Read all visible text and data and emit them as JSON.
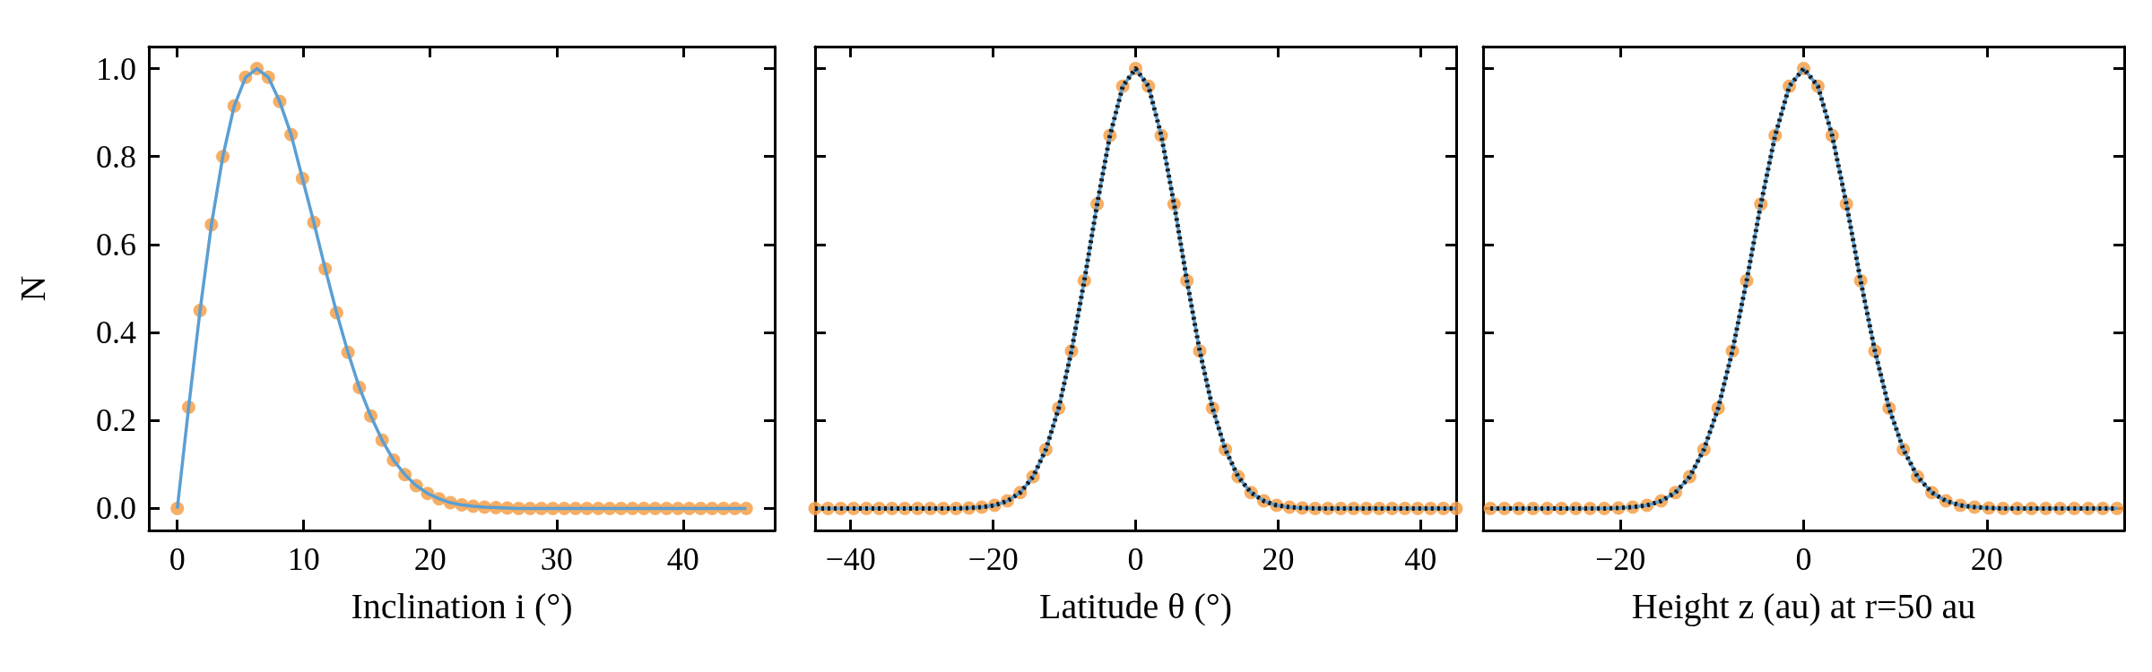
{
  "chart_data": [
    {
      "type": "line",
      "xlabel": "Inclination i (°)",
      "ylabel": "N",
      "xlim": [
        -2.25,
        47.25
      ],
      "xticks": [
        0,
        10,
        20,
        30,
        40
      ],
      "ylim": [
        -0.05,
        1.05
      ],
      "yticks": [
        {
          "value": 0,
          "label": "0.0"
        },
        {
          "value": 0.2,
          "label": "0.2"
        },
        {
          "value": 0.4,
          "label": "0.4"
        },
        {
          "value": 0.6,
          "label": "0.6"
        },
        {
          "value": 0.8,
          "label": "0.8"
        },
        {
          "value": 1,
          "label": "1.0"
        }
      ],
      "grid": false,
      "x": [
        0,
        0.9,
        1.8,
        2.7,
        3.6,
        4.5,
        5.4,
        6.3,
        7.2,
        8.1,
        9,
        9.9,
        10.8,
        11.7,
        12.6,
        13.5,
        14.4,
        15.3,
        16.2,
        17.1,
        18,
        18.9,
        19.8,
        20.7,
        21.6,
        22.5,
        23.4,
        24.3,
        25.2,
        26.1,
        27,
        27.9,
        28.8,
        29.7,
        30.6,
        31.5,
        32.4,
        33.3,
        34.2,
        35.1,
        36,
        36.9,
        37.8,
        38.7,
        39.6,
        40.5,
        41.4,
        42.3,
        43.2,
        44.1,
        45
      ],
      "series": [
        {
          "color": "#5a9fd4",
          "line_style": "solid",
          "marker": "none",
          "values": [
            0,
            0.23,
            0.45,
            0.645,
            0.8,
            0.915,
            0.98,
            1.0,
            0.98,
            0.925,
            0.85,
            0.75,
            0.65,
            0.545,
            0.445,
            0.355,
            0.275,
            0.21,
            0.155,
            0.11,
            0.077,
            0.052,
            0.034,
            0.022,
            0.013,
            0.008,
            0.005,
            0.003,
            0.002,
            0.001,
            0,
            0,
            0,
            0,
            0,
            0,
            0,
            0,
            0,
            0,
            0,
            0,
            0,
            0,
            0,
            0,
            0,
            0,
            0,
            0,
            0
          ]
        },
        {
          "type": "scatter",
          "color": "#f5a04a",
          "marker": "circle",
          "values": [
            0,
            0.23,
            0.45,
            0.645,
            0.8,
            0.915,
            0.98,
            1.0,
            0.98,
            0.925,
            0.85,
            0.75,
            0.65,
            0.545,
            0.445,
            0.355,
            0.275,
            0.21,
            0.155,
            0.11,
            0.077,
            0.052,
            0.034,
            0.022,
            0.013,
            0.008,
            0.005,
            0.003,
            0.002,
            0.001,
            0,
            0,
            0,
            0,
            0,
            0,
            0,
            0,
            0,
            0,
            0,
            0,
            0,
            0,
            0,
            0,
            0,
            0,
            0,
            0,
            0
          ]
        }
      ]
    },
    {
      "type": "line",
      "xlabel": "Latitude θ (°)",
      "xlim": [
        -45,
        45
      ],
      "xticks": [
        -40,
        -20,
        0,
        20,
        40
      ],
      "ylim": [
        -0.05,
        1.05
      ],
      "yticks": [
        0,
        0.2,
        0.4,
        0.6,
        0.8,
        1
      ],
      "tick_labels": "x",
      "grid": false,
      "x": [
        -45,
        -43.2,
        -41.4,
        -39.6,
        -37.8,
        -36,
        -34.2,
        -32.4,
        -30.6,
        -28.8,
        -27,
        -25.2,
        -23.4,
        -21.6,
        -19.8,
        -18,
        -16.2,
        -14.4,
        -12.6,
        -10.8,
        -9,
        -7.2,
        -5.4,
        -3.6,
        -1.8,
        0,
        1.8,
        3.6,
        5.4,
        7.2,
        9,
        10.8,
        12.6,
        14.4,
        16.2,
        18,
        19.8,
        21.6,
        23.4,
        25.2,
        27,
        28.8,
        30.6,
        32.4,
        34.2,
        36,
        37.8,
        39.6,
        41.4,
        43.2,
        45
      ],
      "series": [
        {
          "color": "#5a9fd4",
          "line_style": "solid",
          "marker": "none",
          "values": [
            0,
            0,
            0,
            0,
            0,
            0,
            0,
            0,
            0,
            0,
            0,
            0,
            0.001,
            0.003,
            0.007,
            0.017,
            0.036,
            0.072,
            0.134,
            0.228,
            0.358,
            0.518,
            0.692,
            0.848,
            0.96,
            1.0,
            0.96,
            0.848,
            0.692,
            0.518,
            0.358,
            0.228,
            0.134,
            0.072,
            0.036,
            0.017,
            0.007,
            0.003,
            0.001,
            0,
            0,
            0,
            0,
            0,
            0,
            0,
            0,
            0,
            0,
            0,
            0
          ]
        },
        {
          "type": "scatter",
          "color": "#f5a04a",
          "marker": "circle",
          "values": [
            0,
            0,
            0,
            0,
            0,
            0,
            0,
            0,
            0,
            0,
            0,
            0,
            0.001,
            0.003,
            0.007,
            0.017,
            0.036,
            0.072,
            0.134,
            0.228,
            0.358,
            0.518,
            0.692,
            0.848,
            0.96,
            1.0,
            0.96,
            0.848,
            0.692,
            0.518,
            0.358,
            0.228,
            0.134,
            0.072,
            0.036,
            0.017,
            0.007,
            0.003,
            0.001,
            0,
            0,
            0,
            0,
            0,
            0,
            0,
            0,
            0,
            0,
            0,
            0
          ]
        },
        {
          "color": "#1a1a1a",
          "line_style": "dotted",
          "marker": "none",
          "values": [
            0,
            0,
            0,
            0,
            0,
            0,
            0,
            0,
            0,
            0,
            0,
            0,
            0.001,
            0.003,
            0.007,
            0.017,
            0.036,
            0.072,
            0.134,
            0.228,
            0.358,
            0.518,
            0.692,
            0.848,
            0.96,
            1.0,
            0.96,
            0.848,
            0.692,
            0.518,
            0.358,
            0.228,
            0.134,
            0.072,
            0.036,
            0.017,
            0.007,
            0.003,
            0.001,
            0,
            0,
            0,
            0,
            0,
            0,
            0,
            0,
            0,
            0,
            0,
            0
          ]
        }
      ]
    },
    {
      "type": "line",
      "xlabel": "Height z (au) at r=50 au",
      "xlim": [
        -35,
        35
      ],
      "xticks": [
        -20,
        0,
        20
      ],
      "ylim": [
        -0.05,
        1.05
      ],
      "yticks": [
        0,
        0.2,
        0.4,
        0.6,
        0.8,
        1
      ],
      "tick_labels": "x",
      "grid": false,
      "x": [
        -34.21,
        -32.66,
        -31.1,
        -29.55,
        -27.99,
        -26.44,
        -24.88,
        -23.33,
        -21.77,
        -20.22,
        -18.66,
        -17.11,
        -15.55,
        -14,
        -12.44,
        -10.89,
        -9.33,
        -7.78,
        -6.22,
        -4.67,
        -3.11,
        -1.56,
        0,
        1.56,
        3.11,
        4.67,
        6.22,
        7.78,
        9.33,
        10.89,
        12.44,
        14,
        15.55,
        17.11,
        18.66,
        20.22,
        21.77,
        23.33,
        24.88,
        26.44,
        27.99,
        29.55,
        31.1,
        32.66,
        34.21
      ],
      "series": [
        {
          "color": "#5a9fd4",
          "line_style": "solid",
          "marker": "none",
          "values": [
            0,
            0,
            0,
            0,
            0,
            0,
            0,
            0,
            0,
            0.001,
            0.003,
            0.007,
            0.017,
            0.036,
            0.072,
            0.134,
            0.228,
            0.358,
            0.518,
            0.692,
            0.848,
            0.96,
            1.0,
            0.96,
            0.848,
            0.692,
            0.518,
            0.358,
            0.228,
            0.134,
            0.072,
            0.036,
            0.017,
            0.007,
            0.003,
            0.001,
            0,
            0,
            0,
            0,
            0,
            0,
            0,
            0,
            0
          ]
        },
        {
          "type": "scatter",
          "color": "#f5a04a",
          "marker": "circle",
          "values": [
            0,
            0,
            0,
            0,
            0,
            0,
            0,
            0,
            0,
            0.001,
            0.003,
            0.007,
            0.017,
            0.036,
            0.072,
            0.134,
            0.228,
            0.358,
            0.518,
            0.692,
            0.848,
            0.96,
            1.0,
            0.96,
            0.848,
            0.692,
            0.518,
            0.358,
            0.228,
            0.134,
            0.072,
            0.036,
            0.017,
            0.007,
            0.003,
            0.001,
            0,
            0,
            0,
            0,
            0,
            0,
            0,
            0,
            0
          ]
        },
        {
          "color": "#1a1a1a",
          "line_style": "dotted",
          "marker": "none",
          "values": [
            0,
            0,
            0,
            0,
            0,
            0,
            0,
            0,
            0,
            0.001,
            0.003,
            0.007,
            0.017,
            0.036,
            0.072,
            0.134,
            0.228,
            0.358,
            0.518,
            0.692,
            0.848,
            0.96,
            1.0,
            0.96,
            0.848,
            0.692,
            0.518,
            0.358,
            0.228,
            0.134,
            0.072,
            0.036,
            0.017,
            0.007,
            0.003,
            0.001,
            0,
            0,
            0,
            0,
            0,
            0,
            0,
            0,
            0
          ]
        }
      ]
    }
  ]
}
